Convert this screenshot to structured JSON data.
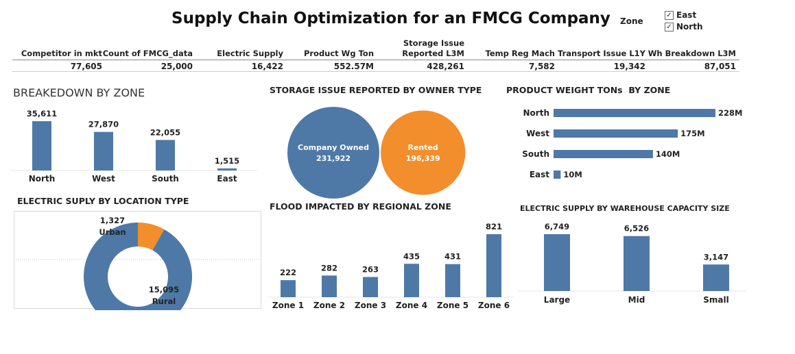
{
  "header": {
    "title": "Supply Chain Optimization for an FMCG Company",
    "filter_label": "Zone",
    "filter_options": [
      {
        "label": "East",
        "checked": true
      },
      {
        "label": "North",
        "checked": true
      }
    ]
  },
  "kpis": [
    {
      "label": "Competitor in mkt",
      "value": "77,605"
    },
    {
      "label": "Count of FMCG_data",
      "value": "25,000"
    },
    {
      "label": "Electric Supply",
      "value": "16,422"
    },
    {
      "label": "Product Wg Ton",
      "value": "552.57M"
    },
    {
      "label": "Storage Issue Reported L3M",
      "value": "428,261"
    },
    {
      "label": "Temp Reg Mach",
      "value": "7,582"
    },
    {
      "label": "Transport Issue L1Y",
      "value": "19,342"
    },
    {
      "label": "Wh Breakdown L3M",
      "value": "87,051"
    }
  ],
  "colors": {
    "blue": "#4e79a7",
    "orange": "#f28e2b"
  },
  "chart_data": [
    {
      "id": "breakdown",
      "type": "bar",
      "title": "BREAKEDOWN BY ZONE",
      "categories": [
        "North",
        "West",
        "South",
        "East"
      ],
      "values": [
        35611,
        27870,
        22055,
        1515
      ],
      "labels": [
        "35,611",
        "27,870",
        "22,055",
        "1,515"
      ]
    },
    {
      "id": "storage",
      "type": "bubble",
      "title": "STORAGE ISSUE REPORTED BY OWNER TYPE",
      "categories": [
        "Company Owned",
        "Rented"
      ],
      "values": [
        231922,
        196339
      ],
      "labels": [
        "231,922",
        "196,339"
      ]
    },
    {
      "id": "weight",
      "type": "bar",
      "orientation": "horizontal",
      "title": "PRODUCT WEIGHT TONs  BY ZONE",
      "categories": [
        "North",
        "West",
        "South",
        "East"
      ],
      "values": [
        228,
        175,
        140,
        10
      ],
      "labels": [
        "228M",
        "175M",
        "140M",
        "10M"
      ]
    },
    {
      "id": "electric_location",
      "type": "pie",
      "title": "ELECTRIC SUPLY BY LOCATION TYPE",
      "categories": [
        "Urban",
        "Rural"
      ],
      "values": [
        1327,
        15095
      ],
      "labels": [
        "1,327",
        "15,095"
      ]
    },
    {
      "id": "flood",
      "type": "bar",
      "title": "FLOOD IMPACTED BY REGIONAL ZONE",
      "categories": [
        "Zone 1",
        "Zone 2",
        "Zone 3",
        "Zone 4",
        "Zone 5",
        "Zone 6"
      ],
      "values": [
        222,
        282,
        263,
        435,
        431,
        821
      ],
      "labels": [
        "222",
        "282",
        "263",
        "435",
        "431",
        "821"
      ]
    },
    {
      "id": "capacity",
      "type": "bar",
      "title": "ELECTRIC SUPPLY BY WAREHOUSE CAPACITY SIZE",
      "categories": [
        "Large",
        "Mid",
        "Small"
      ],
      "values": [
        6749,
        6526,
        3147
      ],
      "labels": [
        "6,749",
        "6,526",
        "3,147"
      ]
    }
  ]
}
